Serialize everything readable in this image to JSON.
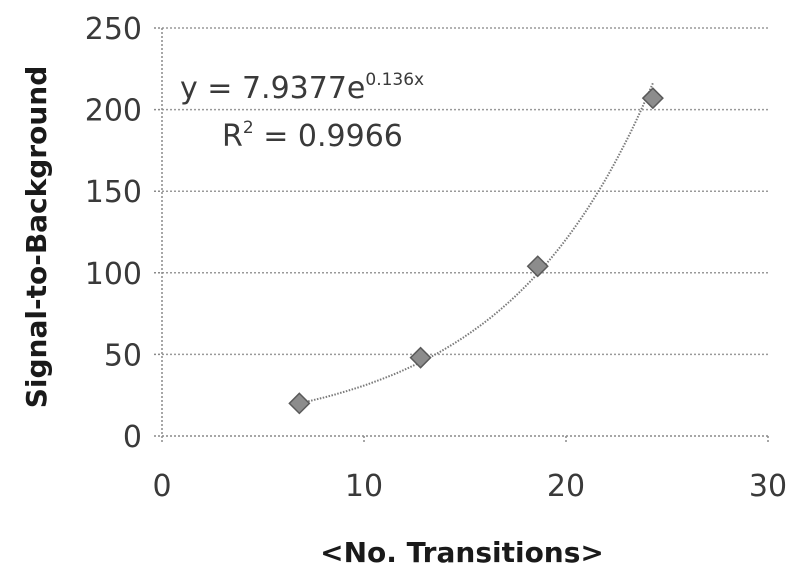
{
  "chart_data": {
    "type": "scatter",
    "title": "",
    "xlabel": "<No. Transitions>",
    "ylabel": "Signal-to-Background",
    "xlim": [
      0,
      30
    ],
    "ylim": [
      0,
      250
    ],
    "x_ticks": [
      0,
      10,
      20,
      30
    ],
    "y_ticks": [
      0,
      50,
      100,
      150,
      200,
      250
    ],
    "grid": "horizontal",
    "legend": "none",
    "series": [
      {
        "points": [
          {
            "x": 6.8,
            "y": 20
          },
          {
            "x": 12.8,
            "y": 48
          },
          {
            "x": 18.6,
            "y": 104
          },
          {
            "x": 24.3,
            "y": 207
          }
        ],
        "color": "#8c8c8c"
      }
    ],
    "trendline": {
      "type": "exponential",
      "a": 7.9377,
      "b": 0.136,
      "equation_prefix": "y = 7.9377e",
      "equation_exponent": "0.136x",
      "r2_prefix": "R",
      "r2_exponent": "2",
      "r2_value": " = 0.9966",
      "color": "#7a7a7a"
    }
  }
}
